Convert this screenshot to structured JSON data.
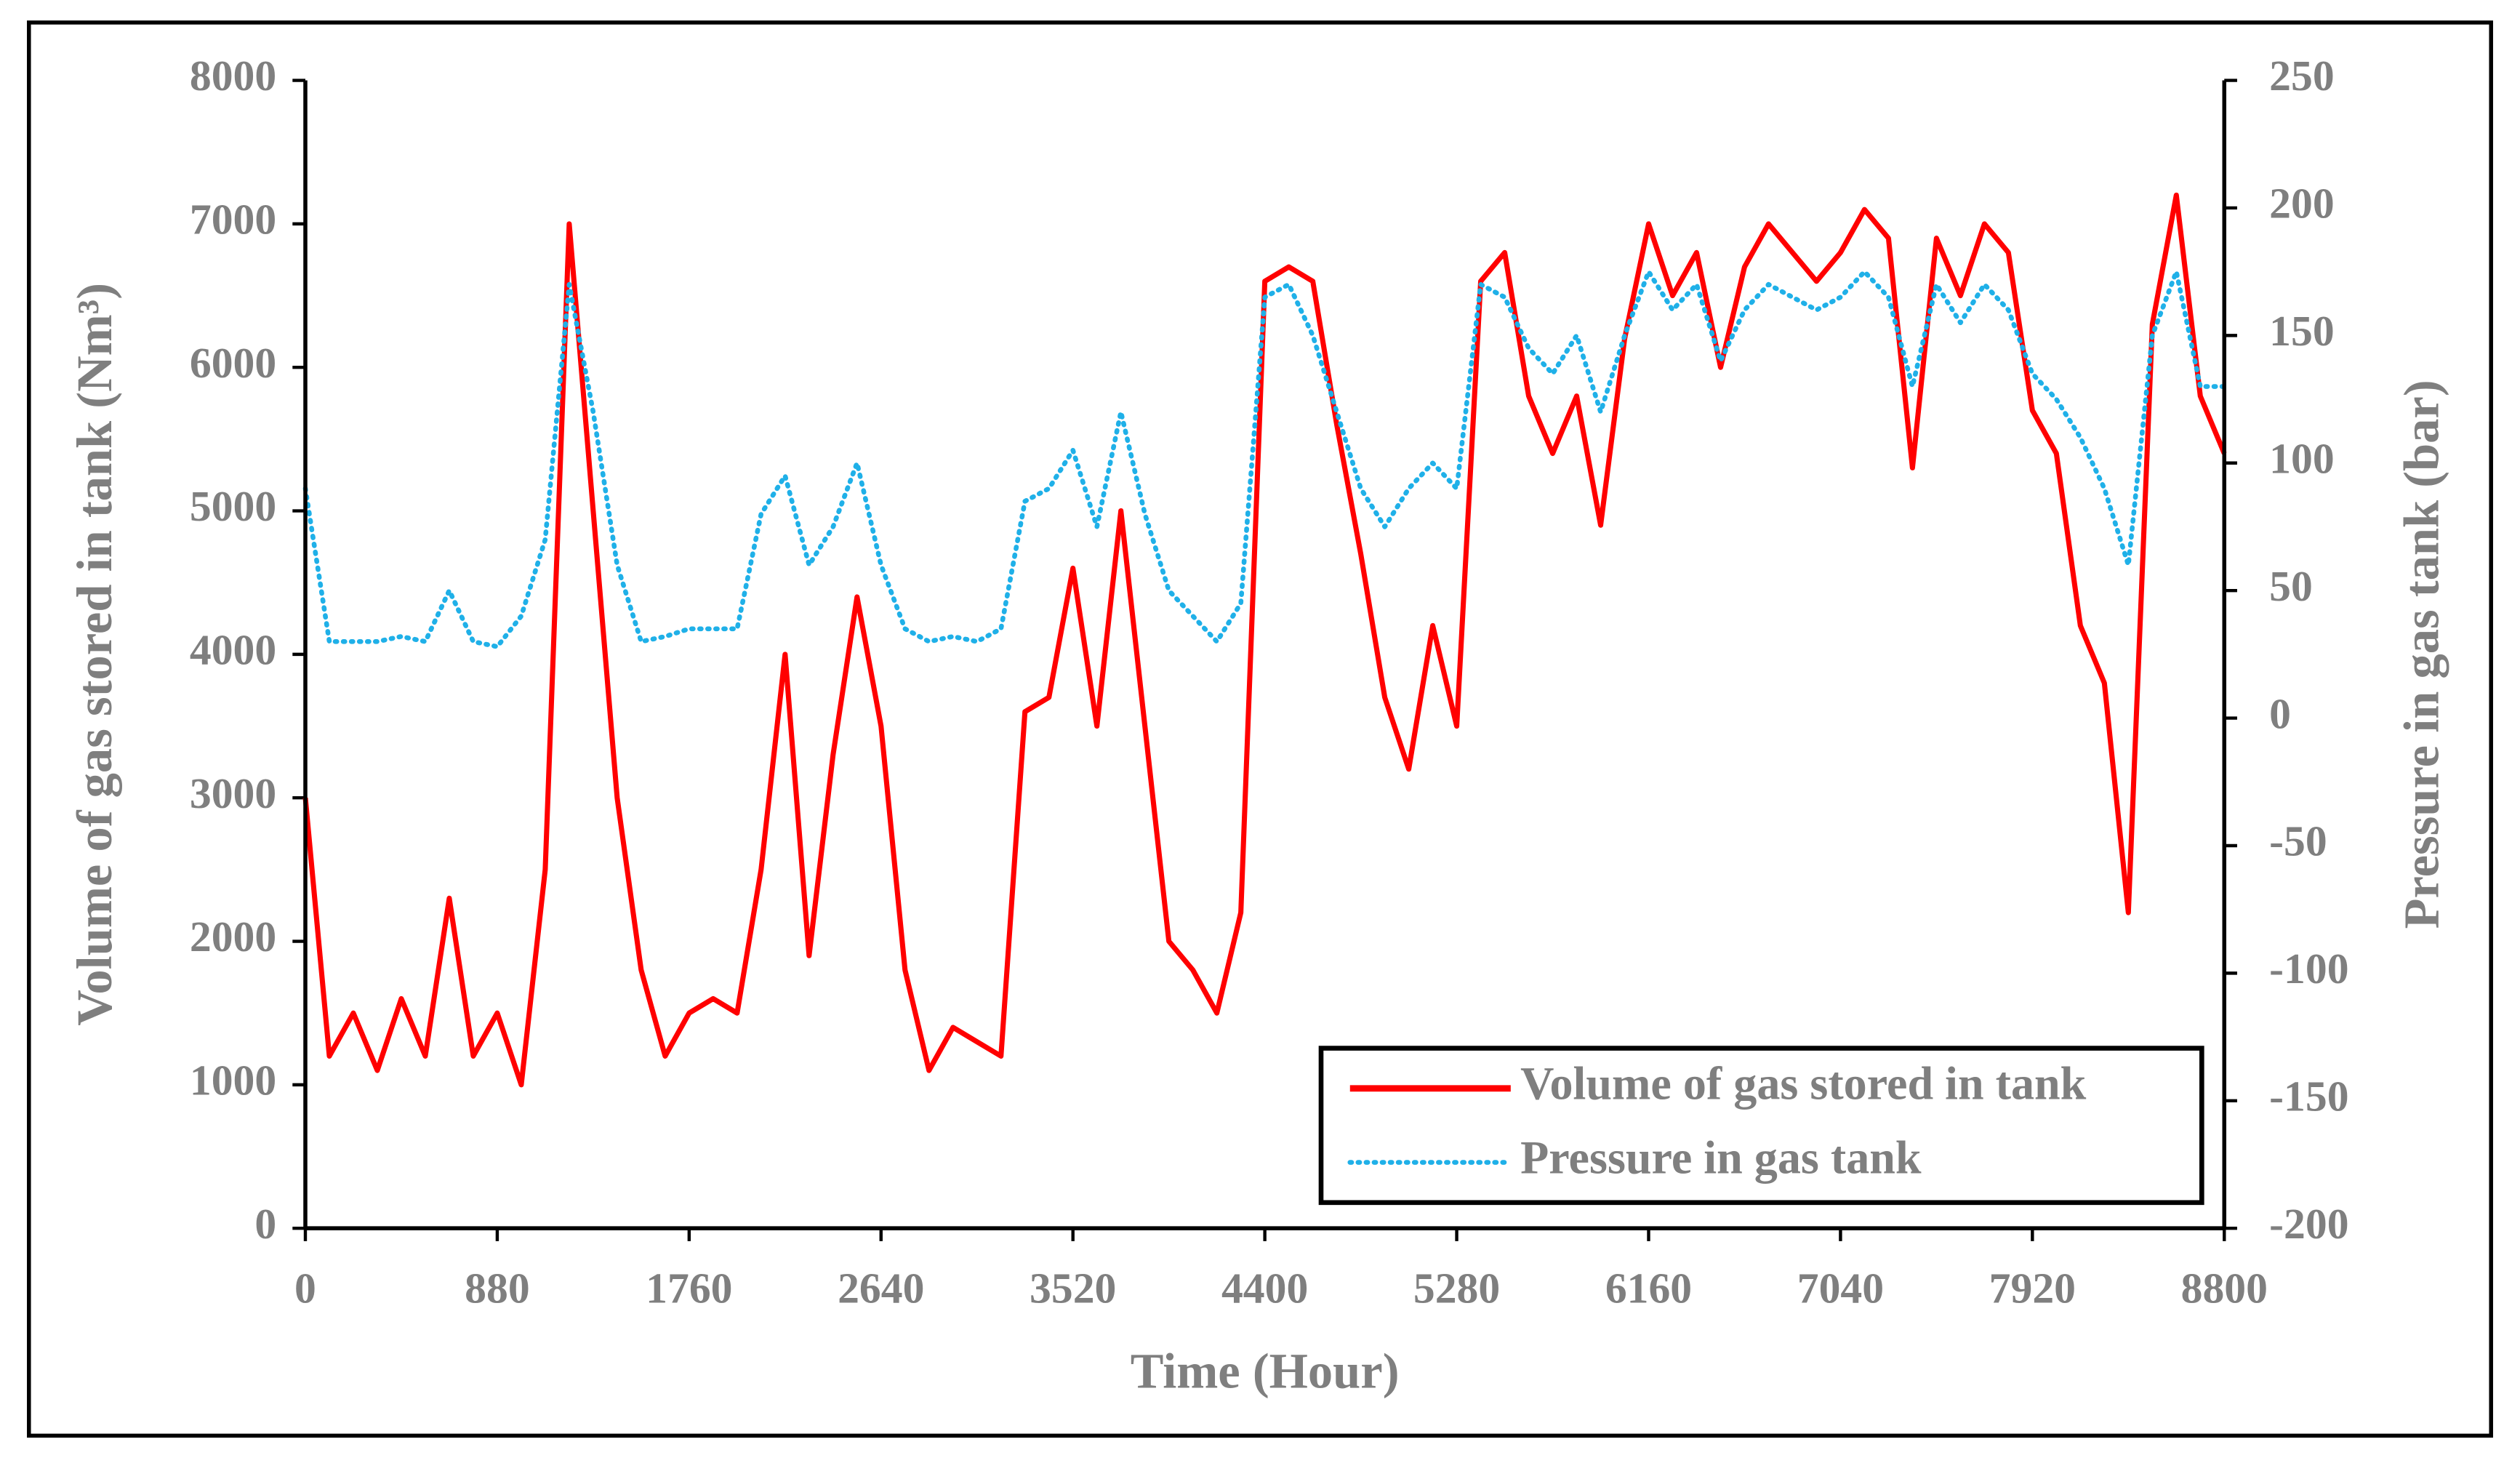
{
  "chart_data": {
    "type": "line",
    "xlabel": "Time (Hour)",
    "ylabel": "Volume of gas stored in tank (Nm³)",
    "y2label": "Pressure in gas tank (bar)",
    "x": [
      0,
      110,
      220,
      330,
      440,
      550,
      660,
      770,
      880,
      990,
      1100,
      1210,
      1320,
      1430,
      1540,
      1650,
      1760,
      1870,
      1980,
      2090,
      2200,
      2310,
      2420,
      2530,
      2640,
      2750,
      2860,
      2970,
      3080,
      3190,
      3300,
      3410,
      3520,
      3630,
      3740,
      3850,
      3960,
      4070,
      4180,
      4290,
      4400,
      4510,
      4620,
      4730,
      4840,
      4950,
      5060,
      5170,
      5280,
      5390,
      5500,
      5610,
      5720,
      5830,
      5940,
      6050,
      6160,
      6270,
      6380,
      6490,
      6600,
      6710,
      6820,
      6930,
      7040,
      7150,
      7260,
      7370,
      7480,
      7590,
      7700,
      7810,
      7920,
      8030,
      8140,
      8250,
      8360,
      8470,
      8580,
      8690,
      8800
    ],
    "xlim": [
      0,
      8800
    ],
    "xticks": [
      0,
      880,
      1760,
      2640,
      3520,
      4400,
      5280,
      6160,
      7040,
      7920,
      8800
    ],
    "ylim": [
      0,
      8000
    ],
    "yticks": [
      0,
      1000,
      2000,
      3000,
      4000,
      5000,
      6000,
      7000,
      8000
    ],
    "y2lim": [
      -200,
      250
    ],
    "y2ticks": [
      -200,
      -150,
      -100,
      -50,
      0,
      50,
      100,
      150,
      200,
      250
    ],
    "legend": "lower right",
    "series": [
      {
        "name": "Volume of gas stored in tank",
        "color": "#ff0000",
        "linestyle": "solid",
        "values": [
          3000,
          1200,
          1500,
          1100,
          1600,
          1200,
          2300,
          1200,
          1500,
          1000,
          2500,
          7000,
          5000,
          3000,
          1800,
          1200,
          1500,
          1600,
          1500,
          2500,
          4000,
          1900,
          3300,
          4400,
          3500,
          1800,
          1100,
          1400,
          1300,
          1200,
          3600,
          3700,
          4600,
          3500,
          5000,
          3500,
          2000,
          1800,
          1500,
          2200,
          6600,
          6700,
          6600,
          5600,
          4700,
          3700,
          3200,
          4200,
          3500,
          6600,
          6800,
          5800,
          5400,
          5800,
          4900,
          6200,
          7000,
          6500,
          6800,
          6000,
          6700,
          7000,
          6800,
          6600,
          6800,
          7100,
          6900,
          5300,
          6900,
          6500,
          7000,
          6800,
          5700,
          5400,
          4200,
          3800,
          2200,
          6300,
          7200,
          5800,
          5400
        ]
      },
      {
        "name": "Pressure in gas tank",
        "color": "#1fb0e8",
        "linestyle": "dotted",
        "axis": "y2",
        "values": [
          90,
          30,
          30,
          30,
          32,
          30,
          50,
          30,
          28,
          40,
          70,
          170,
          120,
          60,
          30,
          32,
          35,
          35,
          35,
          80,
          95,
          60,
          75,
          100,
          60,
          35,
          30,
          32,
          30,
          35,
          85,
          90,
          105,
          75,
          120,
          80,
          50,
          40,
          30,
          45,
          165,
          170,
          150,
          120,
          90,
          75,
          90,
          100,
          90,
          170,
          165,
          145,
          135,
          150,
          120,
          150,
          175,
          160,
          170,
          140,
          160,
          170,
          165,
          160,
          165,
          175,
          165,
          130,
          170,
          155,
          170,
          160,
          135,
          125,
          110,
          90,
          60,
          150,
          175,
          130,
          130
        ]
      }
    ]
  }
}
